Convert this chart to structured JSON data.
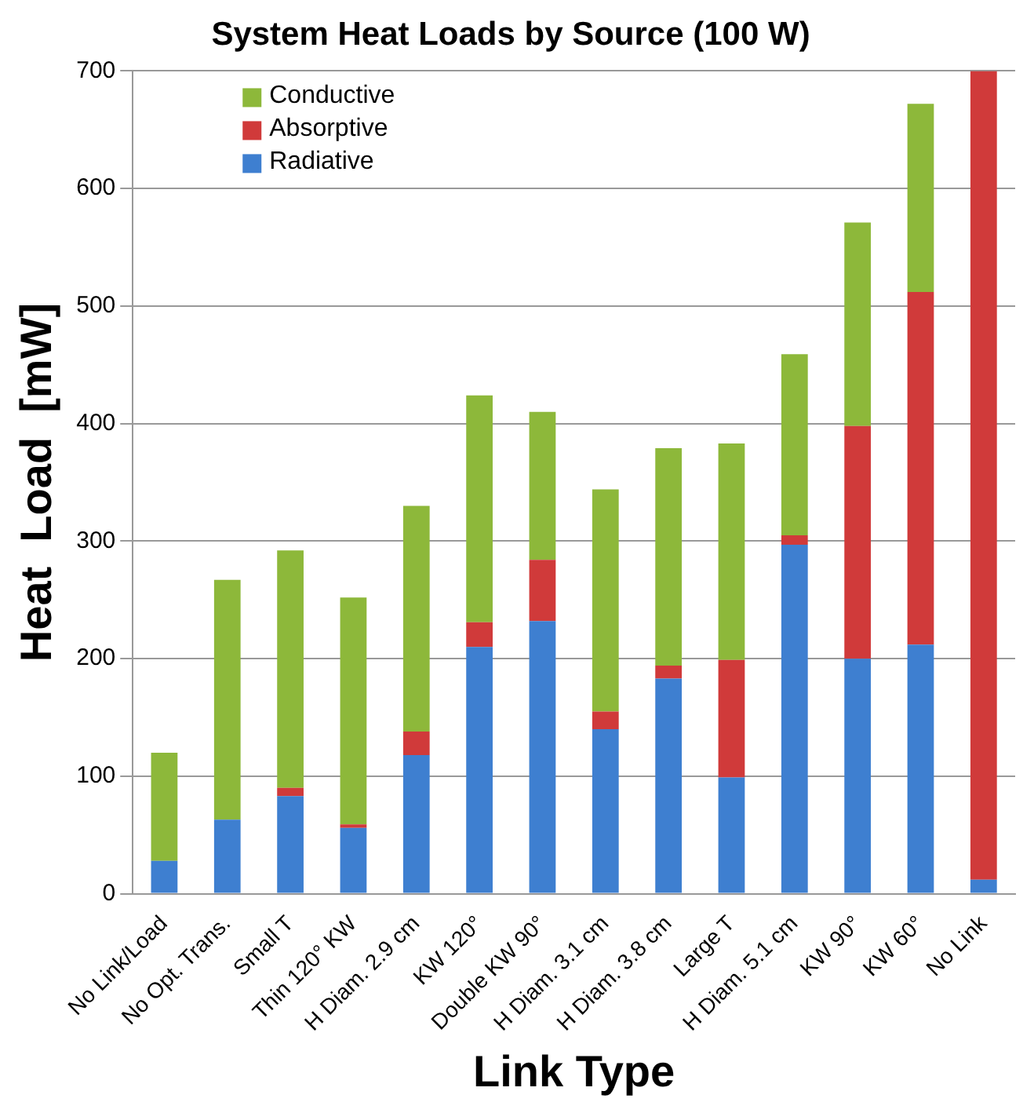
{
  "chart_data": {
    "type": "bar",
    "title": "System Heat Loads by Source (100 W)",
    "xlabel": "Link Type",
    "ylabel": "Heat  Load  [mW]",
    "categories": [
      "No Link/Load",
      "No Opt. Trans.",
      "Small T",
      "Thin 120° KW",
      "H Diam. 2.9 cm",
      "KW 120°",
      "Double KW 90°",
      "H Diam. 3.1 cm",
      "H Diam. 3.8 cm",
      "Large T",
      "H Diam. 5.1 cm",
      "KW 90°",
      "KW 60°",
      "No Link"
    ],
    "stacked": true,
    "series": [
      {
        "name": "Radiative",
        "color": "#3e7fd0",
        "values": [
          28,
          63,
          83,
          56,
          118,
          210,
          232,
          140,
          183,
          99,
          297,
          200,
          212,
          12
        ]
      },
      {
        "name": "Absorptive",
        "color": "#d03a3a",
        "values": [
          0,
          0,
          7,
          3,
          20,
          21,
          52,
          15,
          11,
          100,
          8,
          198,
          300,
          688
        ]
      },
      {
        "name": "Conductive",
        "color": "#8db83a",
        "values": [
          92,
          204,
          202,
          193,
          192,
          193,
          126,
          189,
          185,
          184,
          154,
          173,
          160,
          0
        ]
      }
    ],
    "ylim": [
      0,
      700
    ],
    "yticks": [
      0,
      100,
      200,
      300,
      400,
      500,
      600,
      700
    ],
    "grid": "y",
    "legend": "top left"
  }
}
